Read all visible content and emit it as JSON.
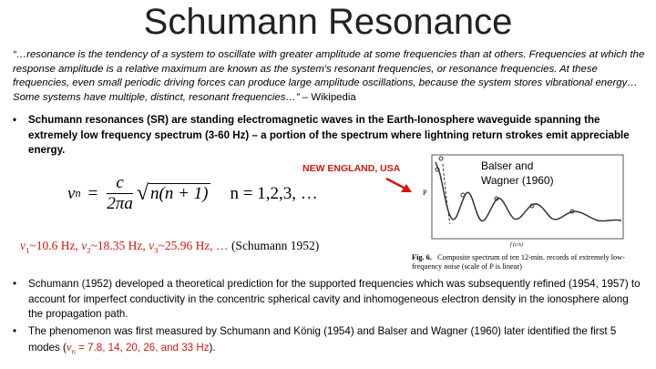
{
  "title": "Schumann Resonance",
  "quote": {
    "text": "“…resonance is the tendency of a system to oscillate with greater amplitude at some frequencies than at others. Frequencies at which the response amplitude is a relative maximum are known as the system's resonant frequencies, or resonance frequencies. At these frequencies, even small periodic driving forces can produce large amplitude oscillations, because the system stores vibrational energy…Some systems have multiple, distinct, resonant frequencies…”",
    "source": "– Wikipedia"
  },
  "bullet_1": "Schumann resonances (SR) are standing electromagnetic waves in the Earth-Ionosphere waveguide spanning the extremely low frequency spectrum (3-60 Hz) – a portion of the spectrum where lightning return strokes emit appreciable energy.",
  "formula": {
    "lhs_symbol": "ν",
    "lhs_sub": "n",
    "equals": "=",
    "numerator": "c",
    "denominator": "2πa",
    "radicand": "n(n + 1)",
    "range": "n = 1,2,3, …"
  },
  "modes": {
    "items": [
      {
        "symbol": "ν",
        "sub": "1",
        "text": "~10.6 Hz,"
      },
      {
        "symbol": "ν",
        "sub": "2",
        "text": "~18.35 Hz,"
      },
      {
        "symbol": "ν",
        "sub": "3",
        "text": "~25.96 Hz, …"
      }
    ],
    "source": "(Schumann 1952)"
  },
  "figure": {
    "location_label": "NEW ENGLAND, USA",
    "credit": "Balser and Wagner (1960)",
    "y_axis": "P",
    "x_axis": "f (c/s)",
    "fig_number": "Fig. 6.",
    "caption": "Composite spectrum of ten 12-min. records of extremely low-frequency noise (scale of P is linear)"
  },
  "bullet_2": "Schumann (1952) developed a theoretical prediction for the supported frequencies which was subsequently refined (1954, 1957) to account for imperfect conductivity in the concentric spherical cavity and inhomogeneous electron density in the ionosphere along the propagation path.",
  "bullet_3": {
    "text": "The phenomenon was first measured by Schumann and König (1954) and Balser and Wagner (1960) later identified the first 5 modes (",
    "symbol": "ν",
    "sub": "n",
    "values": " = 7.8, 14, 20, 26, and 33 Hz",
    "end": ")."
  }
}
